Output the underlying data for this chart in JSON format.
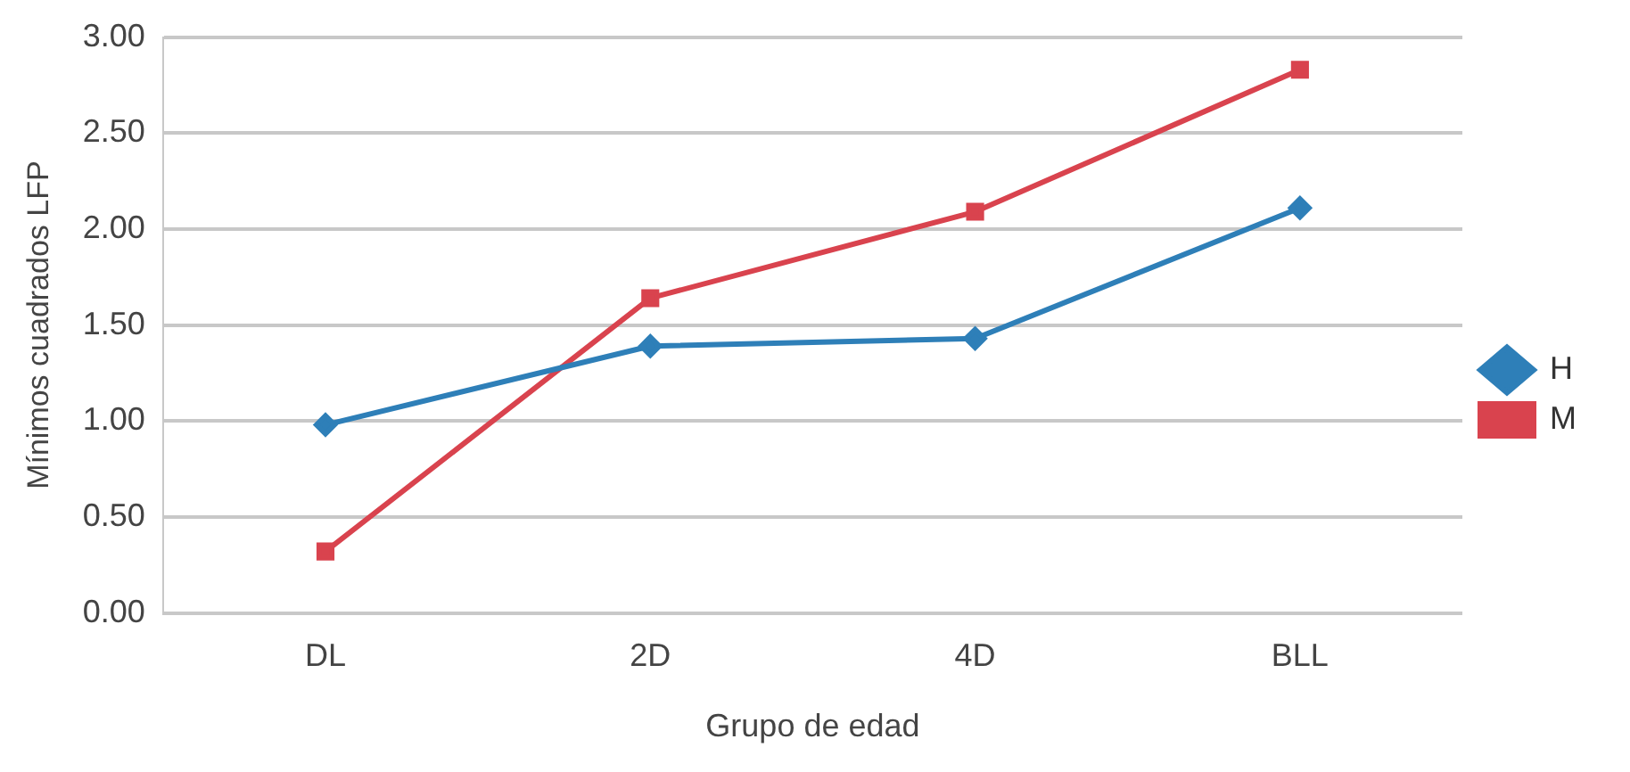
{
  "chart_data": {
    "type": "line",
    "xlabel": "Grupo de edad",
    "ylabel": "Mínimos cuadrados LFP",
    "categories": [
      "DL",
      "2D",
      "4D",
      "BLL"
    ],
    "series": [
      {
        "name": "H",
        "color": "#2e7fb8",
        "marker": "diamond",
        "values": [
          0.98,
          1.39,
          1.43,
          2.11
        ]
      },
      {
        "name": "M",
        "color": "#d9434e",
        "marker": "square",
        "values": [
          0.32,
          1.64,
          2.09,
          2.83
        ]
      }
    ],
    "ylim": [
      0,
      3
    ],
    "yticks": [
      {
        "value": 0,
        "label": "0.00"
      },
      {
        "value": 0.5,
        "label": "0.50"
      },
      {
        "value": 1,
        "label": "1.00"
      },
      {
        "value": 1.5,
        "label": "1.50"
      },
      {
        "value": 2,
        "label": "2.00"
      },
      {
        "value": 2.5,
        "label": "2.50"
      },
      {
        "value": 3,
        "label": "3.00"
      }
    ],
    "grid": "y",
    "legend": "right",
    "line_style": "solid"
  }
}
